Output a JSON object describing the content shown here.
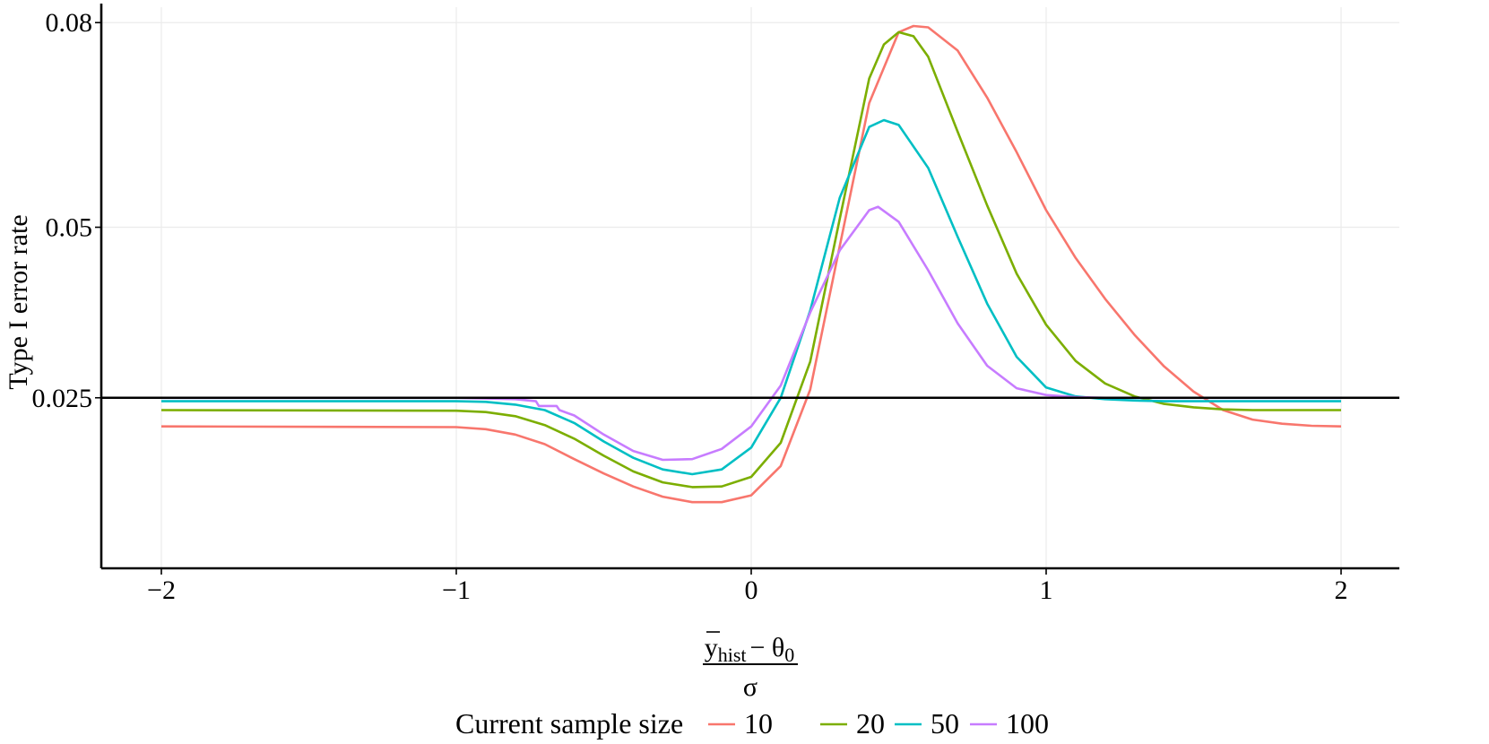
{
  "chart_data": {
    "type": "line",
    "title": "",
    "xlabel": {
      "numerator_symbol": "y",
      "numerator_subscript": "hist",
      "numerator_rest": "− θ",
      "numerator_rest_subscript": "0",
      "denominator": "σ"
    },
    "ylabel": "Type I error rate",
    "xlim": [
      -2.2,
      2.2
    ],
    "ylim": [
      0.0,
      0.082
    ],
    "xticks": [
      -2,
      -1,
      0,
      1,
      2
    ],
    "xtick_labels": [
      "−2",
      "−1",
      "0",
      "1",
      "2"
    ],
    "yticks": [
      0.025,
      0.05,
      0.08
    ],
    "ytick_labels": [
      "0.025",
      "0.05",
      "0.08"
    ],
    "reference_line": {
      "y": 0.025,
      "color": "#000000"
    },
    "legend": {
      "title": "Current sample size",
      "position": "bottom"
    },
    "series": [
      {
        "name": "10",
        "color": "#F8766D",
        "x": [
          -2,
          -1.0,
          -0.9,
          -0.8,
          -0.7,
          -0.6,
          -0.5,
          -0.4,
          -0.3,
          -0.2,
          -0.1,
          0.0,
          0.1,
          0.2,
          0.3,
          0.4,
          0.5,
          0.55,
          0.6,
          0.7,
          0.8,
          0.9,
          1.0,
          1.1,
          1.2,
          1.3,
          1.4,
          1.5,
          1.6,
          1.7,
          1.8,
          1.9,
          2.0
        ],
        "y": [
          0.0208,
          0.0207,
          0.0204,
          0.0196,
          0.0182,
          0.016,
          0.0139,
          0.012,
          0.0105,
          0.0097,
          0.0097,
          0.0107,
          0.015,
          0.0262,
          0.0472,
          0.0682,
          0.0786,
          0.0795,
          0.0793,
          0.0759,
          0.069,
          0.061,
          0.0525,
          0.0455,
          0.0395,
          0.0342,
          0.0296,
          0.0259,
          0.0232,
          0.0218,
          0.0212,
          0.0209,
          0.0208
        ]
      },
      {
        "name": "20",
        "color": "#7CAE00",
        "x": [
          -2,
          -1.0,
          -0.9,
          -0.8,
          -0.7,
          -0.6,
          -0.5,
          -0.4,
          -0.3,
          -0.2,
          -0.1,
          0.0,
          0.1,
          0.2,
          0.3,
          0.4,
          0.45,
          0.5,
          0.55,
          0.6,
          0.7,
          0.8,
          0.9,
          1.0,
          1.1,
          1.2,
          1.3,
          1.4,
          1.5,
          1.6,
          1.7,
          1.8,
          1.9,
          2.0
        ],
        "y": [
          0.0232,
          0.0231,
          0.0229,
          0.0223,
          0.021,
          0.019,
          0.0165,
          0.0142,
          0.0126,
          0.0119,
          0.012,
          0.0134,
          0.0184,
          0.0303,
          0.0512,
          0.0718,
          0.0768,
          0.0786,
          0.078,
          0.075,
          0.064,
          0.0532,
          0.0432,
          0.0357,
          0.0304,
          0.0271,
          0.0252,
          0.0241,
          0.0236,
          0.0233,
          0.0232,
          0.0232,
          0.0232,
          0.0232
        ]
      },
      {
        "name": "50",
        "color": "#00BFC4",
        "x": [
          -2,
          -1.0,
          -0.9,
          -0.8,
          -0.7,
          -0.6,
          -0.5,
          -0.4,
          -0.3,
          -0.2,
          -0.1,
          0.0,
          0.1,
          0.2,
          0.3,
          0.4,
          0.45,
          0.5,
          0.6,
          0.7,
          0.8,
          0.9,
          1.0,
          1.1,
          1.2,
          1.3,
          1.4,
          1.5,
          1.6,
          1.7,
          1.8,
          1.9,
          2.0
        ],
        "y": [
          0.0245,
          0.0245,
          0.0244,
          0.024,
          0.0232,
          0.0213,
          0.0186,
          0.0162,
          0.0145,
          0.0138,
          0.0145,
          0.0177,
          0.025,
          0.0378,
          0.0543,
          0.0647,
          0.0657,
          0.065,
          0.0587,
          0.0486,
          0.0388,
          0.031,
          0.0265,
          0.0252,
          0.0248,
          0.0246,
          0.0245,
          0.0245,
          0.0245,
          0.0245,
          0.0245,
          0.0245,
          0.0245
        ]
      },
      {
        "name": "100",
        "color": "#C77CFF",
        "x": [
          -2,
          -1.0,
          -0.8,
          -0.73,
          -0.72,
          -0.66,
          -0.65,
          -0.6,
          -0.5,
          -0.4,
          -0.3,
          -0.2,
          -0.1,
          0.0,
          0.1,
          0.2,
          0.3,
          0.4,
          0.43,
          0.5,
          0.6,
          0.7,
          0.8,
          0.9,
          1.0,
          1.1,
          1.2,
          1.3,
          1.4,
          1.5,
          1.6,
          1.7,
          1.8,
          1.9,
          2.0
        ],
        "y": [
          0.025,
          0.025,
          0.0248,
          0.0245,
          0.0238,
          0.0238,
          0.0232,
          0.0224,
          0.0196,
          0.0172,
          0.0159,
          0.016,
          0.0175,
          0.0208,
          0.0268,
          0.0375,
          0.0466,
          0.0525,
          0.053,
          0.0508,
          0.0437,
          0.0359,
          0.0297,
          0.0264,
          0.0254,
          0.0251,
          0.025,
          0.025,
          0.025,
          0.025,
          0.025,
          0.025,
          0.025,
          0.025,
          0.025
        ]
      }
    ]
  }
}
